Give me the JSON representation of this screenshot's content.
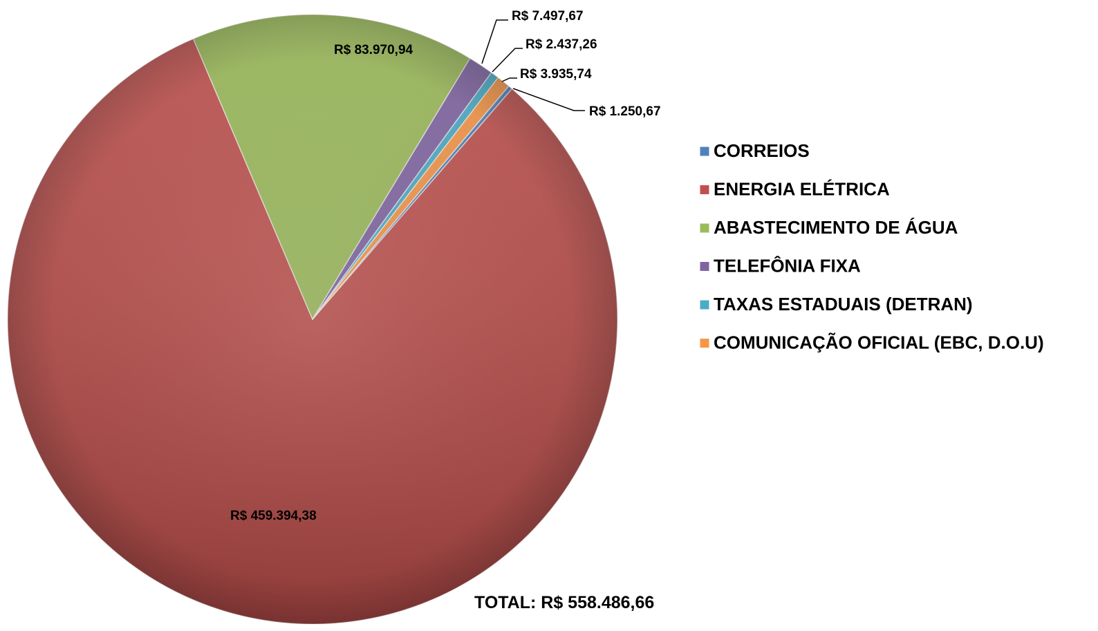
{
  "chart_data": {
    "type": "pie",
    "annotation": "TOTAL:  R$ 558.486,66",
    "categories": [
      "CORREIOS",
      "ENERGIA ELÉTRICA",
      "ABASTECIMENTO DE ÁGUA",
      "TELEFÔNIA FIXA",
      "TAXAS ESTADUAIS (DETRAN)",
      "COMUNICAÇÃO OFICIAL (EBC, D.O.U)"
    ],
    "values": [
      1250.67,
      459394.38,
      83970.94,
      7497.67,
      2437.26,
      3935.74
    ],
    "value_labels": [
      "R$ 1.250,67",
      "R$ 459.394,38",
      "R$ 83.970,94",
      "R$ 7.497,67",
      "R$ 2.437,26",
      "R$ 3.935,74"
    ],
    "colors": [
      "#4f81bd",
      "#c0504d",
      "#9bbb59",
      "#8064a2",
      "#4bacc6",
      "#f79646"
    ],
    "legend": "right"
  }
}
